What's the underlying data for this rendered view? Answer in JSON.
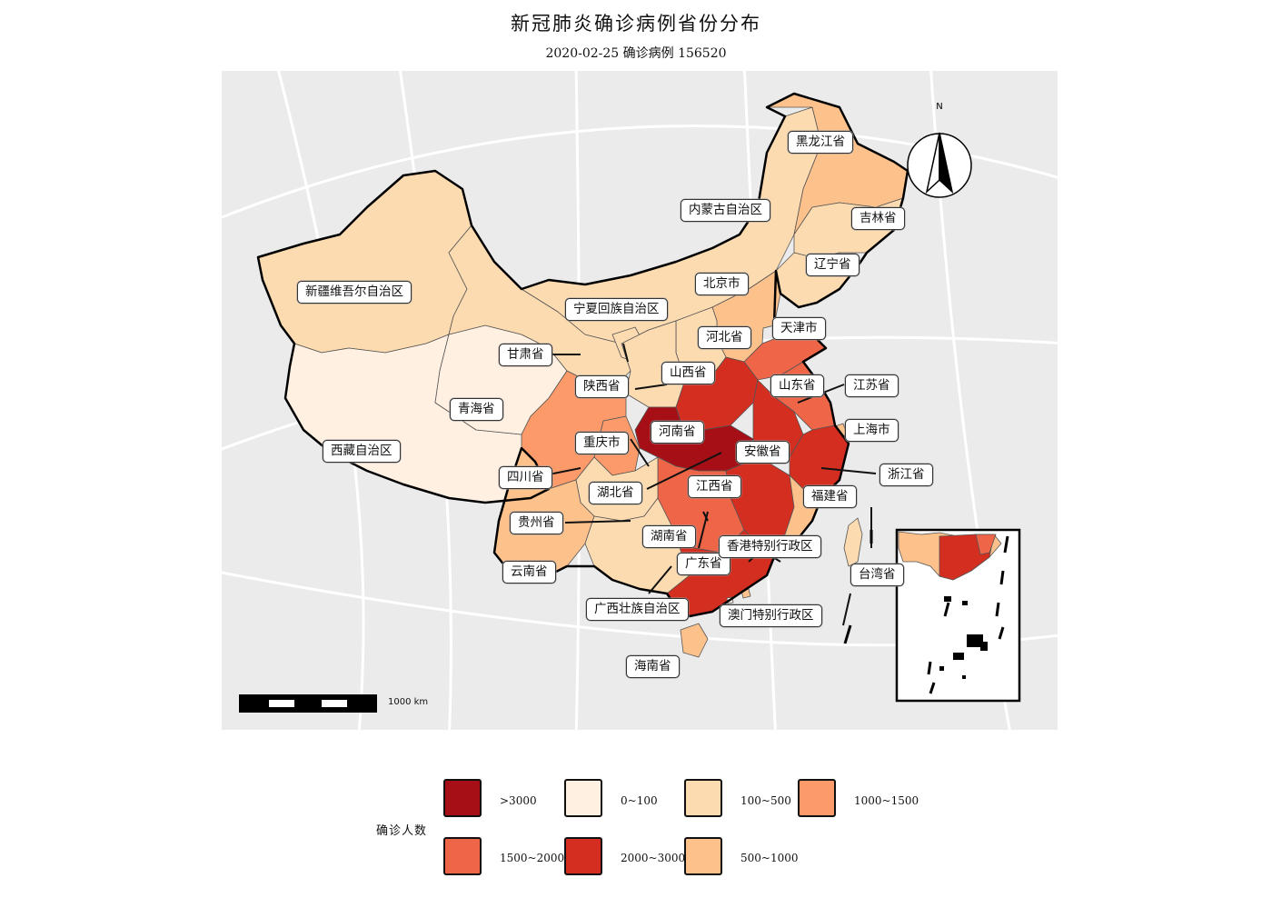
{
  "title": "新冠肺炎确诊病例省份分布",
  "subtitle": "2020-02-25 确诊病例 156520",
  "north_arrow": "N",
  "scale_bar": "1000 km",
  "colors": {
    "gt3000": "#a50f15",
    "r2000_3000": "#d42e21",
    "r1500_2000": "#ef6548",
    "r1000_1500": "#fc9a6a",
    "r500_1000": "#fdc28c",
    "r100_500": "#fddbb0",
    "r0_100": "#fff0e1",
    "land_bg": "#ebebeb"
  },
  "legend": {
    "title": "确诊人数",
    "items": [
      {
        "label": ">3000",
        "color": "#a50f15"
      },
      {
        "label": "0~100",
        "color": "#fff0e1"
      },
      {
        "label": "100~500",
        "color": "#fddbb0"
      },
      {
        "label": "1000~1500",
        "color": "#fc9a6a"
      },
      {
        "label": "1500~2000",
        "color": "#ef6548"
      },
      {
        "label": "2000~3000",
        "color": "#d42e21"
      },
      {
        "label": "500~1000",
        "color": "#fdc28c"
      }
    ]
  },
  "provinces": [
    {
      "name": "黑龙江省"
    },
    {
      "name": "吉林省"
    },
    {
      "name": "辽宁省"
    },
    {
      "name": "内蒙古自治区"
    },
    {
      "name": "北京市"
    },
    {
      "name": "天津市"
    },
    {
      "name": "河北省"
    },
    {
      "name": "山西省"
    },
    {
      "name": "山东省"
    },
    {
      "name": "江苏省"
    },
    {
      "name": "上海市"
    },
    {
      "name": "浙江省"
    },
    {
      "name": "安徽省"
    },
    {
      "name": "河南省"
    },
    {
      "name": "江西省"
    },
    {
      "name": "福建省"
    },
    {
      "name": "湖北省"
    },
    {
      "name": "湖南省"
    },
    {
      "name": "广东省"
    },
    {
      "name": "香港特别行政区"
    },
    {
      "name": "澳门特别行政区"
    },
    {
      "name": "台湾省"
    },
    {
      "name": "海南省"
    },
    {
      "name": "广西壮族自治区"
    },
    {
      "name": "云南省"
    },
    {
      "name": "贵州省"
    },
    {
      "name": "四川省"
    },
    {
      "name": "重庆市"
    },
    {
      "name": "陕西省"
    },
    {
      "name": "宁夏回族自治区"
    },
    {
      "name": "甘肃省"
    },
    {
      "name": "青海省"
    },
    {
      "name": "西藏自治区"
    },
    {
      "name": "新疆维吾尔自治区"
    }
  ]
}
